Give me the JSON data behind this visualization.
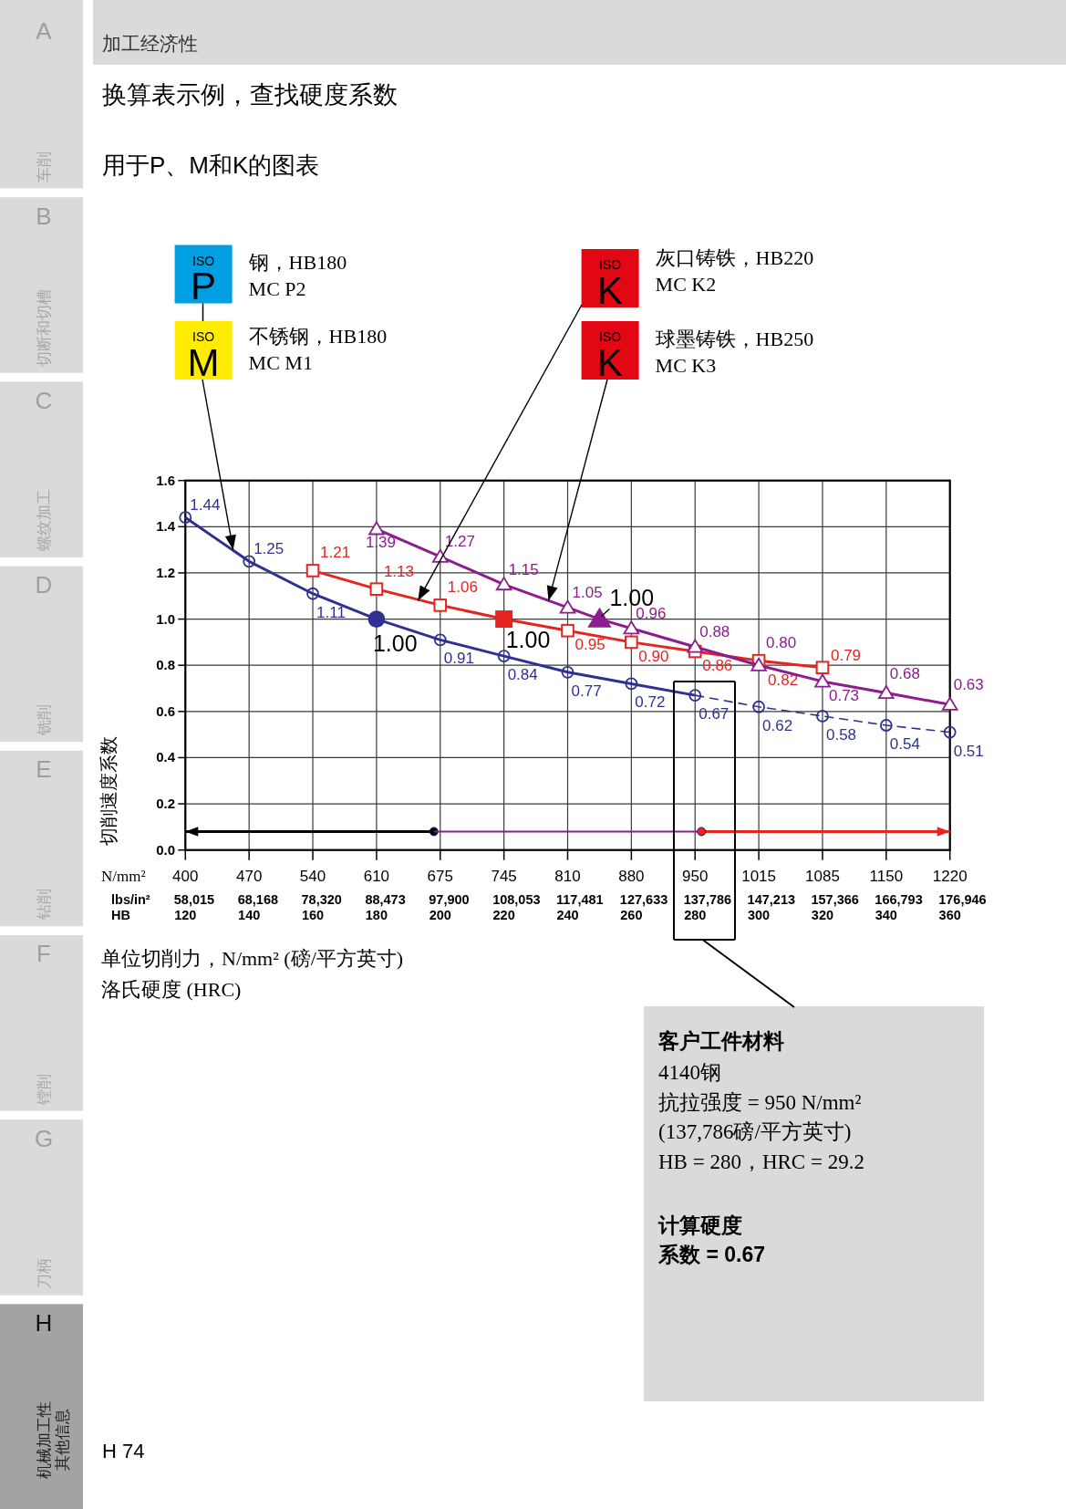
{
  "chart_data": {
    "type": "line",
    "title": "换算表示例，查找硬度系数",
    "subtitle": "用于P、M和K的图表",
    "xlabel": "单位切削力，N/mm² (磅/平方英寸)\n洛氏硬度 (HRC)",
    "ylabel": "切削速度系数",
    "x": [
      120,
      140,
      160,
      180,
      200,
      220,
      240,
      260,
      280,
      300,
      320,
      340,
      360
    ],
    "xlim": [
      120,
      360
    ],
    "xticks": [
      120,
      140,
      160,
      180,
      200,
      220,
      240,
      260,
      280,
      300,
      320,
      340,
      360
    ],
    "ylim": [
      0,
      1.6
    ],
    "yticks": [
      {
        "value": 0,
        "label": "0.0"
      },
      0.2,
      0.4,
      0.6,
      0.8,
      {
        "value": 1,
        "label": "1.0"
      },
      1.2,
      1.4,
      1.6
    ],
    "grid": true,
    "series": [
      {
        "color": "#2e3192",
        "marker": "circle",
        "values": [
          1.44,
          1.25,
          1.11,
          1.0,
          0.91,
          0.84,
          0.77,
          0.72,
          0.67,
          null,
          null,
          null,
          null
        ],
        "value_labels": [
          "1.44",
          "1.25",
          "1.11",
          null,
          "0.91",
          "0.84",
          "0.77",
          "0.72",
          "0.67",
          null,
          null,
          null,
          null
        ]
      },
      {
        "color": "#2e3192",
        "marker": "circle",
        "line_style": "dashed",
        "values": [
          null,
          null,
          null,
          null,
          null,
          null,
          null,
          null,
          0.67,
          0.62,
          0.58,
          0.54,
          0.51
        ],
        "value_labels": [
          null,
          null,
          null,
          null,
          null,
          null,
          null,
          null,
          null,
          "0.62",
          "0.58",
          "0.54",
          "0.51"
        ]
      },
      {
        "color": "#e42522",
        "marker": "square",
        "values": [
          null,
          null,
          1.21,
          1.13,
          1.06,
          1.0,
          0.95,
          0.9,
          0.86,
          0.82,
          0.79,
          null,
          null
        ],
        "value_labels": [
          null,
          null,
          "1.21",
          "1.13",
          "1.06",
          null,
          "0.95",
          "0.90",
          "0.86",
          "0.82",
          "0.79",
          null,
          null
        ]
      },
      {
        "color": "#8c1d8e",
        "marker": "triangle",
        "x": [
          180,
          200,
          220,
          240,
          250,
          260,
          280,
          300,
          320,
          340,
          360
        ],
        "values": [
          1.39,
          1.27,
          1.15,
          1.05,
          1.0,
          0.96,
          0.88,
          0.8,
          0.73,
          0.68,
          0.63
        ],
        "value_labels": [
          "1.39",
          "1.27",
          "1.15",
          "1.05",
          null,
          "0.96",
          "0.88",
          "0.80",
          "0.73",
          "0.68",
          "0.63"
        ]
      },
      {
        "color": "#000000",
        "marker": "circle",
        "x": [
          198,
          120
        ],
        "values": [
          0.08,
          0.08
        ]
      },
      {
        "color": "#8c1d8e",
        "marker": "none",
        "x": [
          198,
          282
        ],
        "values": [
          0.08,
          0.08
        ]
      },
      {
        "color": "#e42522",
        "marker": "circle",
        "x": [
          282,
          360
        ],
        "values": [
          0.08,
          0.08
        ]
      }
    ],
    "annotations": [
      "加工经济性",
      "A",
      "车削",
      "B",
      "切断和切槽",
      "C",
      "螺纹加工",
      "D",
      "铣削",
      "E",
      "钻削",
      "F",
      "镗削",
      "G",
      "刀柄",
      "H",
      "机械加工性其他信息",
      "ISO",
      "P",
      "钢，HB180\nMC P2",
      "ISO",
      {
        "text": "M",
        "x": 135,
        "y": 1.3
      },
      "不锈钢，HB180\nMC M1",
      "ISO",
      {
        "text": "K",
        "x": 193,
        "y": 1.08
      },
      "灰口铸铁，HB220\nMC K2",
      "ISO",
      {
        "text": "K",
        "x": 234,
        "y": 1.08
      },
      "球墨铸铁，HB250\nMC K3",
      "N/mm²",
      "lbs/in²",
      "HB",
      "400",
      "470",
      "540",
      "610",
      "675",
      "745",
      "810",
      "880",
      "950",
      "1015",
      "1085",
      "1150",
      "1220",
      "58,015",
      "68,168",
      "78,320",
      "88,473",
      "97,900",
      "108,053",
      "117,481",
      "127,633",
      "137,786",
      "147,213",
      "157,366",
      "166,793",
      "176,946",
      "客户工件材料",
      "4140钢",
      "抗拉强度 = 950 N/mm²",
      "(137,786磅/平方英寸)",
      "HB = 280，HRC = 29.2",
      "计算硬度",
      "系数 = 0.67",
      "H 74",
      {
        "text": "1.00",
        "x": 180,
        "y": 1.0
      },
      {
        "text": "1.00",
        "x": 220,
        "y": 1.0
      },
      {
        "text": "1.00",
        "x": 250,
        "y": 1.0
      }
    ]
  }
}
